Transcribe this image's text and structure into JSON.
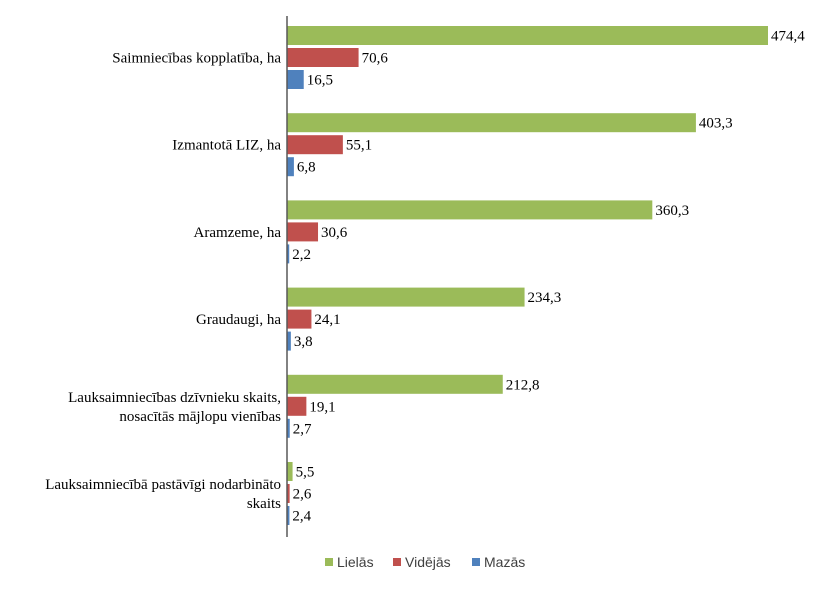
{
  "chart_data": {
    "type": "bar",
    "orientation": "horizontal",
    "title": "",
    "xlabel": "",
    "ylabel": "",
    "categories": [
      [
        "Saimniecības kopplatība, ha"
      ],
      [
        "Izmantotā LIZ, ha"
      ],
      [
        "Aramzeme, ha"
      ],
      [
        "Graudaugi, ha"
      ],
      [
        "Lauksaimniecības dzīvnieku skaits,",
        "nosacītās mājlopu vienības"
      ],
      [
        "Lauksaimniecībā pastāvīgi nodarbināto",
        "skaits"
      ]
    ],
    "series": [
      {
        "name": "Lielās",
        "color": "#9BBB59",
        "values": [
          474.4,
          403.3,
          360.3,
          234.3,
          212.8,
          5.5
        ],
        "labels": [
          "474,4",
          "403,3",
          "360,3",
          "234,3",
          "212,8",
          "5,5"
        ]
      },
      {
        "name": "Vidējās",
        "color": "#C0504D",
        "values": [
          70.6,
          55.1,
          30.6,
          24.1,
          19.1,
          2.6
        ],
        "labels": [
          "70,6",
          "55,1",
          "30,6",
          "24,1",
          "19,1",
          "2,6"
        ]
      },
      {
        "name": "Mazās",
        "color": "#4F81BD",
        "values": [
          16.5,
          6.8,
          2.2,
          3.8,
          2.7,
          2.4
        ],
        "labels": [
          "16,5",
          "6,8",
          "2,2",
          "3,8",
          "2,7",
          "2,4"
        ]
      }
    ],
    "xlim": [
      0,
      474.4
    ],
    "grid": false,
    "legend_position": "bottom"
  }
}
